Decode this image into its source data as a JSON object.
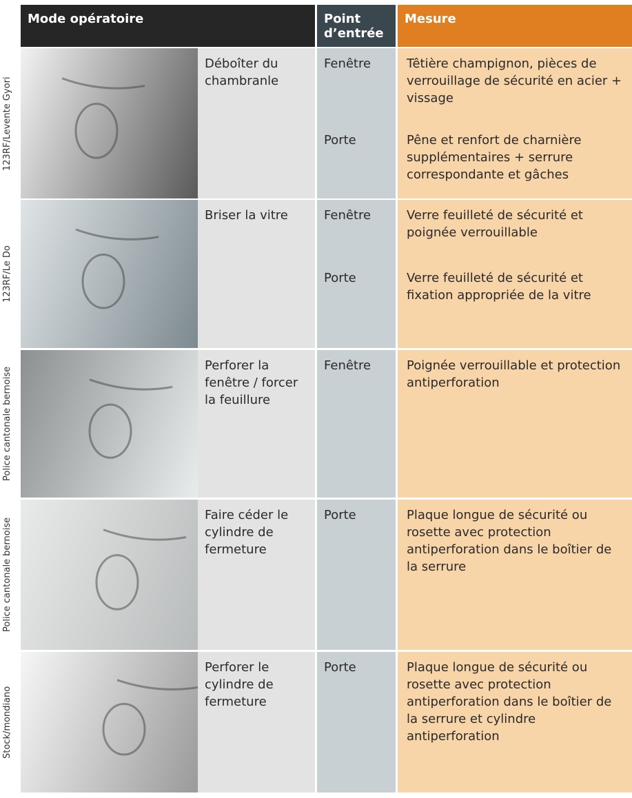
{
  "table": {
    "header": [
      "Mode opératoire",
      "Point d’entrée",
      "Mesure"
    ],
    "rows": [
      {
        "credit": "123RF/Levente Gyori",
        "mode": "Déboîter du chambranle",
        "entries": [
          {
            "point": "Fenêtre",
            "mesure": "Têtière champignon, pièces de verrouillage de sécurité en acier + vissage"
          },
          {
            "point": "Porte",
            "mesure": "Pêne et renfort de charnière supplémentaires + serrure correspondante et gâches"
          }
        ]
      },
      {
        "credit": "123RF/Le Do",
        "mode": "Briser la vitre",
        "entries": [
          {
            "point": "Fenêtre",
            "mesure": "Verre feuilleté de sécurité et poignée verrouillable"
          },
          {
            "point": "Porte",
            "mesure": "Verre feuilleté de sécurité et fixation appropriée de la vitre"
          }
        ]
      },
      {
        "credit": "Police cantonale bernoise",
        "mode": "Perforer la fenêtre / forcer la feuillure",
        "entries": [
          {
            "point": "Fenêtre",
            "mesure": "Poignée verrouillable et protection antiperforation"
          }
        ]
      },
      {
        "credit": "Police cantonale bernoise",
        "mode": "Faire céder le cylindre de fermeture",
        "entries": [
          {
            "point": "Porte",
            "mesure": "Plaque longue de sécurité ou rosette avec protection antiperforation dans le boîtier de la serrure"
          }
        ]
      },
      {
        "credit": "Stock/mondiano",
        "mode": "Perforer le cylindre de fermeture",
        "entries": [
          {
            "point": "Porte",
            "mesure": "Plaque longue de sécurité ou rosette avec protection antiperforation dans le boîtier de la serrure et cylindre antiperforation"
          }
        ]
      }
    ]
  }
}
